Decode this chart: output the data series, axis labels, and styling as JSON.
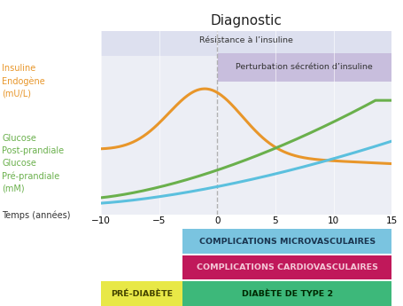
{
  "title": "Diagnostic",
  "xlabel": "Temps (années)",
  "xmin": -10,
  "xmax": 15,
  "xticks": [
    -10,
    -5,
    0,
    5,
    10,
    15
  ],
  "bg_color": "#eceef5",
  "resistance_band": {
    "xmin": -10,
    "xmax": 15,
    "color": "#dde0ef",
    "label": "Résistance à l’insuline"
  },
  "perturbation_band": {
    "xmin": 0,
    "xmax": 15,
    "color": "#c8bedd",
    "label": "Perturbation sécrétion d’insuline"
  },
  "insulin_label": "Insuline\nEndogène\n(mU/L)",
  "insulin_color": "#e8962a",
  "glucose_post_label": "Glucose\nPost-prandiale\nGlucose\nPré-prandiale\n(mM)",
  "glucose_post_color": "#6ab04c",
  "glucose_pre_color": "#5bc0de",
  "dashed_line_x": 0,
  "complications_micro": {
    "xmin": -3,
    "xmax": 15,
    "color": "#7ac4e0",
    "label": "COMPLICATIONS MICROVASCULAIRES"
  },
  "complications_cardio": {
    "xmin": -3,
    "xmax": 15,
    "color": "#c0185a",
    "label": "COMPLICATIONS CARDIOVASCULAIRES"
  },
  "pre_diabete": {
    "xmin": -10,
    "xmax": -3,
    "color": "#e8e847",
    "label": "PRÉ-DIABÈTE"
  },
  "diabete_type2": {
    "xmin": -3,
    "xmax": 15,
    "color": "#3db87a",
    "label": "DIABÈTE DE TYPE 2"
  }
}
